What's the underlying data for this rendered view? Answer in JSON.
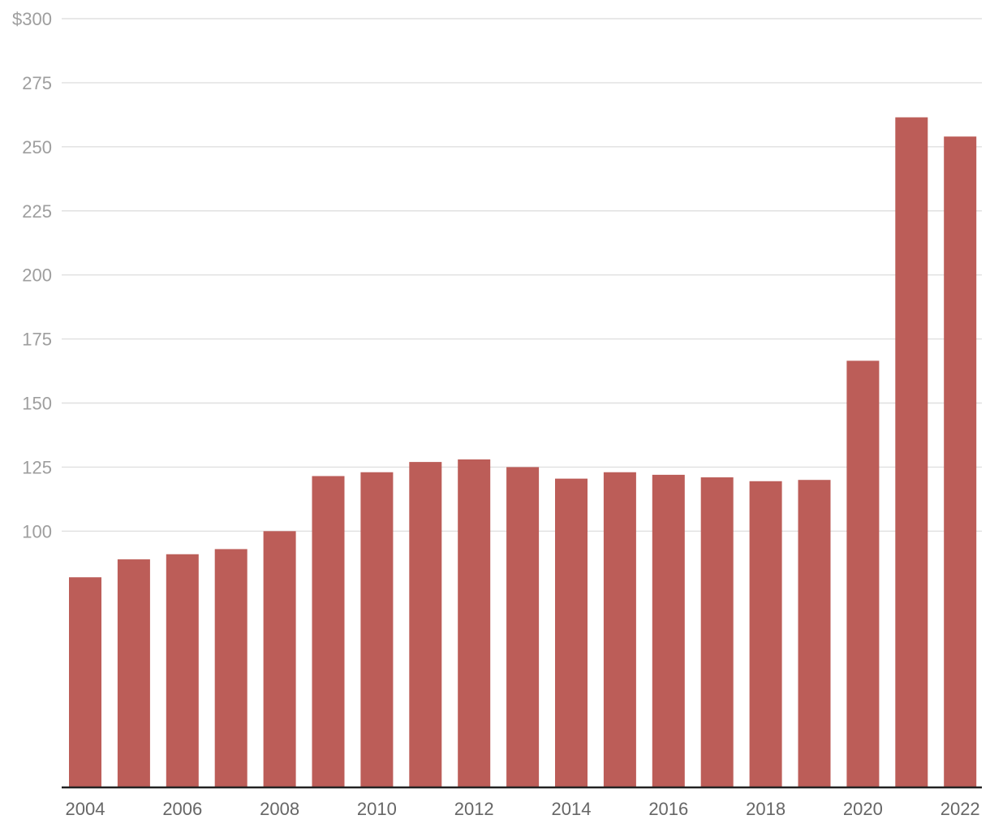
{
  "chart_data": {
    "type": "bar",
    "title": "",
    "xlabel": "",
    "ylabel": "",
    "bar_color": "#bc5d58",
    "categories": [
      "2004",
      "2005",
      "2006",
      "2007",
      "2008",
      "2009",
      "2010",
      "2011",
      "2012",
      "2013",
      "2014",
      "2015",
      "2016",
      "2017",
      "2018",
      "2019",
      "2020",
      "2021",
      "2022"
    ],
    "values": [
      82,
      89,
      91,
      93,
      100,
      121.5,
      123,
      127,
      128,
      125,
      120.5,
      123,
      122,
      121,
      119.5,
      120,
      166.5,
      261.5,
      254
    ],
    "x_tick_labels": [
      "2004",
      "2006",
      "2008",
      "2010",
      "2012",
      "2014",
      "2016",
      "2018",
      "2020",
      "2022"
    ],
    "y_ticks": [
      100,
      125,
      150,
      175,
      200,
      225,
      250,
      275,
      300
    ],
    "y_tick_labels": [
      "100",
      "125",
      "150",
      "175",
      "200",
      "225",
      "250",
      "275",
      "$300"
    ],
    "ylim": [
      0,
      300
    ],
    "grid": true,
    "legend": "none"
  }
}
